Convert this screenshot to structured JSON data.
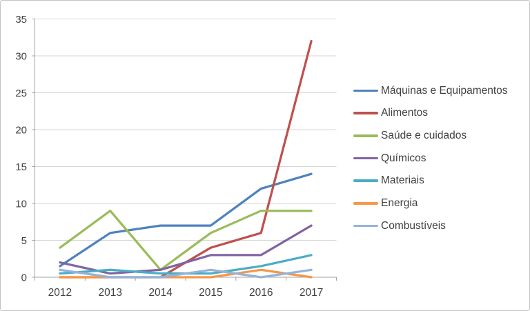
{
  "chart_data": {
    "type": "line",
    "categories": [
      "2012",
      "2013",
      "2014",
      "2015",
      "2016",
      "2017"
    ],
    "series": [
      {
        "name": "Máquinas e Equipamentos",
        "color": "#4F81BD",
        "values": [
          1.5,
          6,
          7,
          7,
          12,
          14
        ]
      },
      {
        "name": "Alimentos",
        "color": "#C0504D",
        "values": [
          0,
          0,
          0,
          4,
          6,
          32
        ]
      },
      {
        "name": "Saúde e cuidados",
        "color": "#9BBB59",
        "values": [
          4,
          9,
          1,
          6,
          9,
          9
        ]
      },
      {
        "name": "Químicos",
        "color": "#8064A2",
        "values": [
          2,
          0.5,
          1,
          3,
          3,
          7
        ]
      },
      {
        "name": "Materiais",
        "color": "#4BACC6",
        "values": [
          0.5,
          1,
          0.5,
          0.5,
          1.5,
          3
        ]
      },
      {
        "name": "Energia",
        "color": "#F79646",
        "values": [
          0,
          0,
          0,
          0,
          1,
          0
        ]
      },
      {
        "name": "Combustíveis",
        "color": "#95B3D7",
        "values": [
          1,
          0,
          0,
          1,
          0,
          1
        ]
      }
    ],
    "ylim": [
      0,
      35
    ],
    "yticks": [
      0,
      5,
      10,
      15,
      20,
      25,
      30,
      35
    ],
    "grid": true,
    "legend_position": "right",
    "axis_color": "#a3a3a3",
    "grid_color": "#d6d6d6",
    "label_color": "#404040"
  }
}
